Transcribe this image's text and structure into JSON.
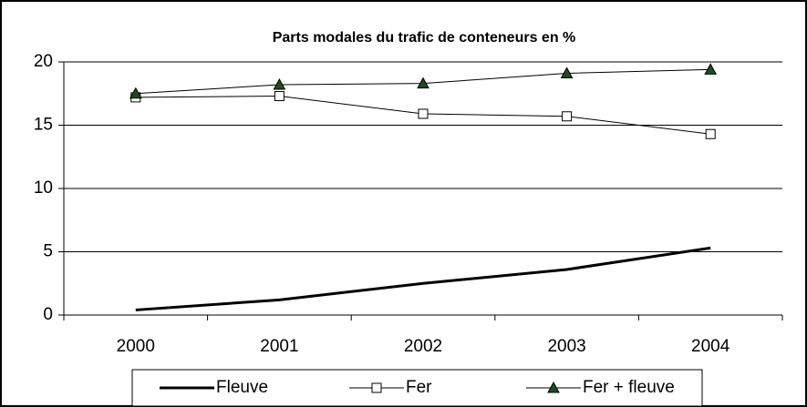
{
  "chart_data": {
    "type": "line",
    "title": "Parts modales du trafic de conteneurs en %",
    "categories": [
      "2000",
      "2001",
      "2002",
      "2003",
      "2004"
    ],
    "series": [
      {
        "name": "Fleuve",
        "color": "#000000",
        "marker": "none",
        "values": [
          0.4,
          1.2,
          2.5,
          3.6,
          5.3
        ]
      },
      {
        "name": "Fer",
        "color": "#000000",
        "marker": "square",
        "values": [
          17.2,
          17.3,
          15.9,
          15.7,
          14.3
        ]
      },
      {
        "name": "Fer + fleuve",
        "color": "#000000",
        "marker": "triangle",
        "marker_color": "#1e4d1e",
        "values": [
          17.5,
          18.2,
          18.3,
          19.1,
          19.4
        ]
      }
    ],
    "ylim": [
      0,
      20
    ],
    "yticks": [
      0,
      5,
      10,
      15,
      20
    ],
    "grid": true,
    "legend": "bottom"
  }
}
